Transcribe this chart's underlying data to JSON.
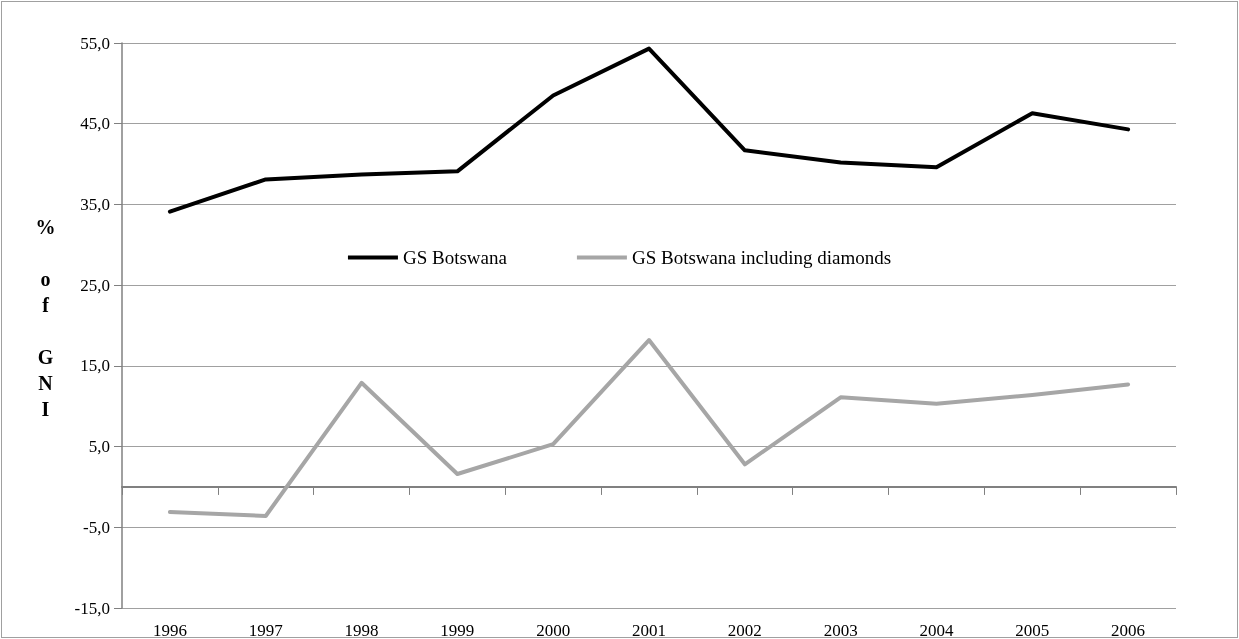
{
  "chart_data": {
    "type": "line",
    "ylabel": "% of GNI",
    "categories": [
      "1996",
      "1997",
      "1998",
      "1999",
      "2000",
      "2001",
      "2002",
      "2003",
      "2004",
      "2005",
      "2006"
    ],
    "series": [
      {
        "name": "GS Botswana",
        "color": "#000000",
        "values": [
          34.1,
          38.1,
          38.7,
          39.1,
          48.5,
          54.3,
          41.7,
          40.2,
          39.6,
          46.3,
          44.3
        ]
      },
      {
        "name": "GS Botswana including diamonds",
        "color": "#a6a6a6",
        "values": [
          -3.1,
          -3.6,
          12.9,
          1.6,
          5.3,
          18.2,
          2.8,
          11.1,
          10.3,
          11.4,
          12.7
        ]
      }
    ],
    "ylim": [
      -15,
      55
    ],
    "yticks": [
      {
        "value": -15,
        "label": "-15,0"
      },
      {
        "value": -5,
        "label": "-5,0"
      },
      {
        "value": 5,
        "label": "5,0"
      },
      {
        "value": 15,
        "label": "15,0"
      },
      {
        "value": 25,
        "label": "25,0"
      },
      {
        "value": 35,
        "label": "35,0"
      },
      {
        "value": 45,
        "label": "45,0"
      },
      {
        "value": 55,
        "label": "55,0"
      }
    ],
    "grid": "y",
    "legend": "center",
    "marker": "none",
    "line_style": "solid"
  }
}
